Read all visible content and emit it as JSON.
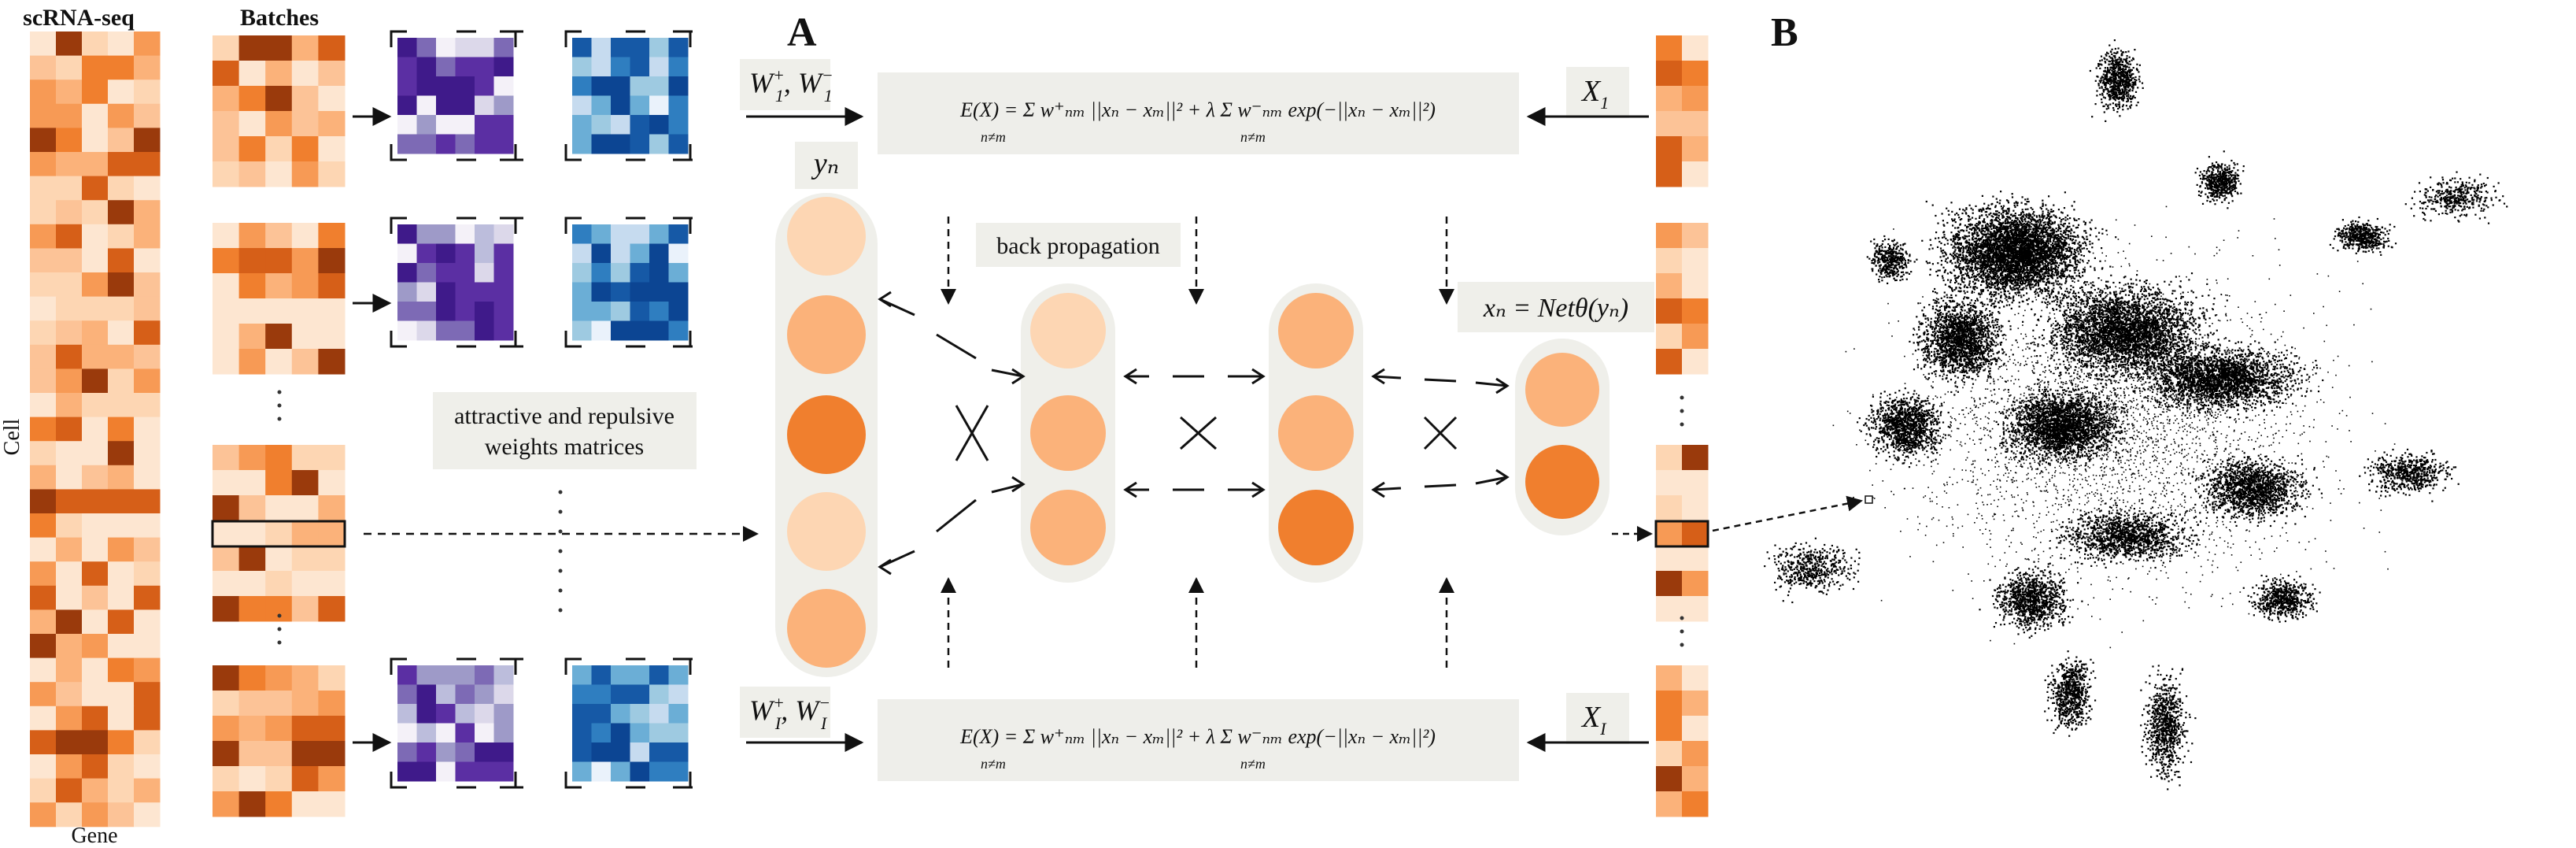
{
  "panel_labels": {
    "a": "A",
    "b": "B"
  },
  "headers": {
    "scrna": "scRNA-seq",
    "batches": "Batches"
  },
  "axes": {
    "cell": "Cell",
    "gene": "Gene"
  },
  "captions": {
    "weights": [
      "attractive and repulsive",
      "weights matrices"
    ],
    "backprop": "back propagation"
  },
  "math": {
    "w_top_main": "W",
    "w_top_sup1": "+",
    "w_top_sub1": "1",
    "w_top_sep": ", W",
    "w_top_sup2": "−",
    "w_top_sub2": "1",
    "w_bot_main": "W",
    "w_bot_sup1": "+",
    "w_bot_sub1": "I",
    "w_bot_sep": ", W",
    "w_bot_sup2": "−",
    "w_bot_sub2": "I",
    "energy": "E(X) = Σ w⁺ₙₘ ||xₙ − xₘ||² + λ Σ w⁻ₙₘ exp(−||xₙ − xₘ||²)",
    "energy_sub": "n≠m",
    "x1": "X",
    "x1_sub": "1",
    "xI": "X",
    "xI_sub": "I",
    "yn": "yₙ",
    "net": "xₙ = Netθ(yₙ)"
  },
  "colors": {
    "orange_dark": "#f07f2e",
    "orange_mid": "#fbb27a",
    "orange_light": "#fdd6b3",
    "purple": "#5b2fa3",
    "blue": "#0c4593"
  },
  "network": {
    "input_layer_nodes": 5,
    "hidden1_nodes": 3,
    "hidden2_nodes": 3,
    "output_nodes": 2
  }
}
